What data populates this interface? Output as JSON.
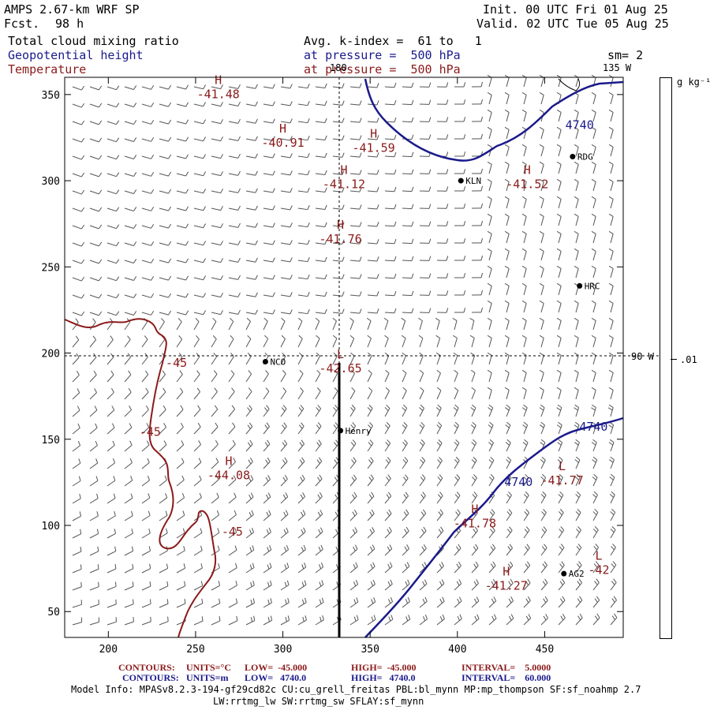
{
  "header": {
    "model": "AMPS 2.67-km WRF SP",
    "fcst_label": "Fcst.",
    "fcst_value": "98 h",
    "init": "Init. 00 UTC Fri 01 Aug 25",
    "valid": "Valid. 02 UTC Tue 05 Aug 25",
    "field1": "Total cloud mixing ratio",
    "field2": "Geopotential height",
    "field3": "Temperature",
    "avg": "Avg. k-index =  61 to   1",
    "pressure1": "at pressure =  500 hPa",
    "pressure2": "at pressure =  500 hPa",
    "sm": "sm= 2",
    "lon_135": "135 W",
    "lon_180": "180",
    "lon_90": "90 W",
    "units": "g kg⁻¹",
    "scale_val": ".01"
  },
  "axes": {
    "x_ticks": [
      200,
      250,
      300,
      350,
      400,
      450
    ],
    "y_ticks": [
      50,
      100,
      150,
      200,
      250,
      300,
      350
    ],
    "x_range": [
      175,
      495
    ],
    "y_range": [
      35,
      360
    ]
  },
  "colors": {
    "height": "#1a1a8c",
    "temp": "#8b1a1a",
    "barb": "#555555"
  },
  "stations": [
    {
      "name": "KLN",
      "x": 402,
      "y": 300
    },
    {
      "name": "RDG",
      "x": 466,
      "y": 314
    },
    {
      "name": "HRC",
      "x": 470,
      "y": 239
    },
    {
      "name": "NCO",
      "x": 290,
      "y": 195
    },
    {
      "name": "Henry",
      "x": 333,
      "y": 155
    },
    {
      "name": "AG2",
      "x": 461,
      "y": 72
    }
  ],
  "extrema": [
    {
      "type": "H",
      "value": "-41.48",
      "x": 263,
      "y": 356
    },
    {
      "type": "H",
      "value": "-40.91",
      "x": 300,
      "y": 328
    },
    {
      "type": "H",
      "value": "-41.59",
      "x": 352,
      "y": 325
    },
    {
      "type": "H",
      "value": "-41.12",
      "x": 335,
      "y": 304
    },
    {
      "type": "H",
      "value": "-41.52",
      "x": 440,
      "y": 304
    },
    {
      "type": "H",
      "value": "-41.76",
      "x": 333,
      "y": 272
    },
    {
      "type": "L",
      "value": "-42.65",
      "x": 333,
      "y": 197
    },
    {
      "type": "H",
      "value": "-44.08",
      "x": 269,
      "y": 135
    },
    {
      "type": "L",
      "value": "-41.77",
      "x": 460,
      "y": 132
    },
    {
      "type": "H",
      "value": "-41.78",
      "x": 410,
      "y": 107
    },
    {
      "type": "H",
      "value": "-41.27",
      "x": 428,
      "y": 71
    },
    {
      "type": "L",
      "value": "-42",
      "x": 481,
      "y": 80
    }
  ],
  "contour_labels": [
    {
      "value": "4740",
      "x": 470,
      "y": 330,
      "kind": "height"
    },
    {
      "value": "4740",
      "x": 478,
      "y": 155,
      "kind": "height"
    },
    {
      "value": "4740",
      "x": 435,
      "y": 123,
      "kind": "height"
    },
    {
      "value": "-45",
      "x": 239,
      "y": 192,
      "kind": "temp"
    },
    {
      "value": "-45",
      "x": 224,
      "y": 152,
      "kind": "temp"
    },
    {
      "value": "-45",
      "x": 271,
      "y": 94,
      "kind": "temp"
    }
  ],
  "footer": {
    "c1_label": "CONTOURS:",
    "c1_units": "UNITS=°C",
    "c1_low": "LOW=  -45.000",
    "c1_high": "HIGH=  -45.000",
    "c1_int": "INTERVAL=    5.0000",
    "c2_label": "CONTOURS:",
    "c2_units": "UNITS=m",
    "c2_low": "LOW=   4740.0",
    "c2_high": "HIGH=   4740.0",
    "c2_int": "INTERVAL=    60.000",
    "info1": "Model Info: MPASv8.2.3-194-gf29cd82c CU:cu_grell_freitas PBL:bl_mynn MP:mp_thompson SF:sf_noahmp 2.7",
    "info2": "LW:rrtmg_lw SW:rrtmg_sw SFLAY:sf_mynn"
  }
}
